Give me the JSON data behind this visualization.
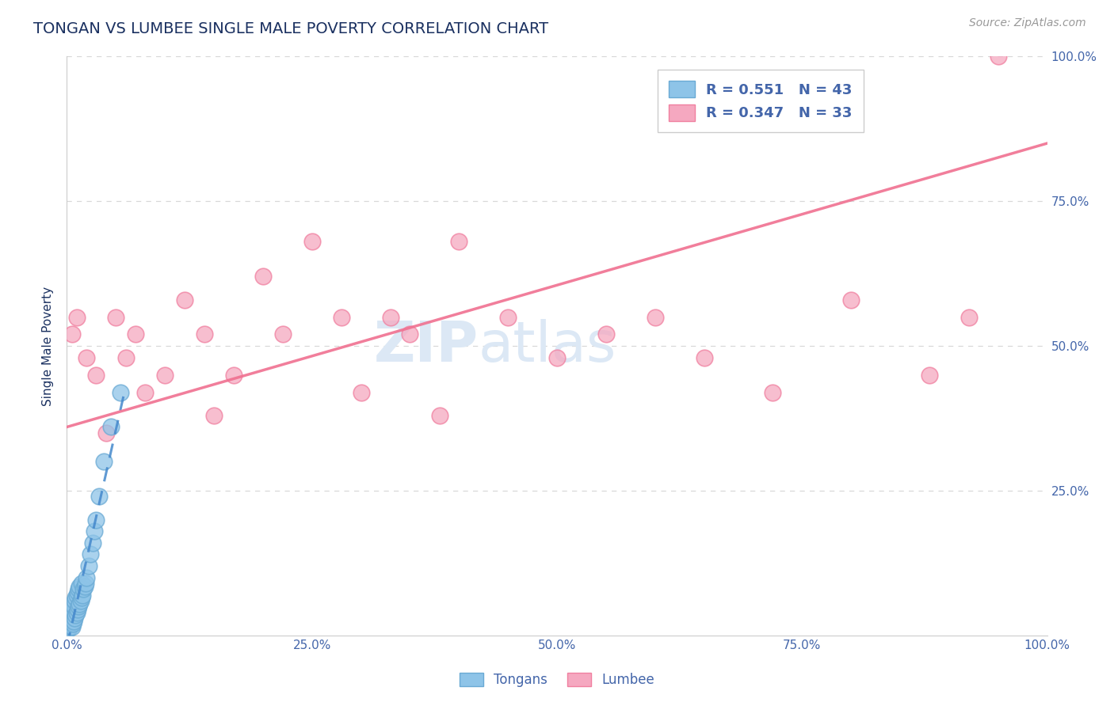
{
  "title": "TONGAN VS LUMBEE SINGLE MALE POVERTY CORRELATION CHART",
  "source_text": "Source: ZipAtlas.com",
  "ylabel": "Single Male Poverty",
  "xlim": [
    0,
    1.0
  ],
  "ylim": [
    0,
    1.0
  ],
  "xticks": [
    0.0,
    0.25,
    0.5,
    0.75,
    1.0
  ],
  "xtick_labels": [
    "0.0%",
    "25.0%",
    "50.0%",
    "75.0%",
    "100.0%"
  ],
  "yticks": [
    0.0,
    0.25,
    0.5,
    0.75,
    1.0
  ],
  "ytick_labels_left": [
    "",
    "",
    "",
    "",
    ""
  ],
  "ytick_labels_right": [
    "",
    "25.0%",
    "50.0%",
    "75.0%",
    "100.0%"
  ],
  "tongans_color": "#8ec4e8",
  "lumbee_color": "#f5a8c0",
  "tongans_edge_color": "#6aaad4",
  "lumbee_edge_color": "#f080a0",
  "tongans_line_color": "#4488cc",
  "lumbee_line_color": "#f07090",
  "tongans_R": 0.551,
  "tongans_N": 43,
  "lumbee_R": 0.347,
  "lumbee_N": 33,
  "tongans_x": [
    0.001,
    0.002,
    0.002,
    0.003,
    0.003,
    0.004,
    0.004,
    0.005,
    0.005,
    0.005,
    0.006,
    0.006,
    0.007,
    0.007,
    0.008,
    0.008,
    0.009,
    0.009,
    0.01,
    0.01,
    0.011,
    0.011,
    0.012,
    0.012,
    0.013,
    0.013,
    0.014,
    0.015,
    0.015,
    0.016,
    0.017,
    0.018,
    0.019,
    0.02,
    0.022,
    0.024,
    0.026,
    0.028,
    0.03,
    0.033,
    0.038,
    0.045,
    0.055
  ],
  "tongans_y": [
    0.01,
    0.02,
    0.03,
    0.015,
    0.025,
    0.02,
    0.04,
    0.015,
    0.025,
    0.035,
    0.02,
    0.04,
    0.025,
    0.05,
    0.03,
    0.06,
    0.035,
    0.065,
    0.04,
    0.07,
    0.045,
    0.075,
    0.05,
    0.08,
    0.055,
    0.085,
    0.06,
    0.065,
    0.09,
    0.07,
    0.08,
    0.085,
    0.09,
    0.1,
    0.12,
    0.14,
    0.16,
    0.18,
    0.2,
    0.24,
    0.3,
    0.36,
    0.42
  ],
  "tongans_line_x": [
    0.0,
    0.055
  ],
  "lumbee_x": [
    0.005,
    0.01,
    0.02,
    0.03,
    0.04,
    0.05,
    0.06,
    0.07,
    0.08,
    0.1,
    0.12,
    0.14,
    0.15,
    0.17,
    0.2,
    0.22,
    0.25,
    0.28,
    0.3,
    0.33,
    0.35,
    0.38,
    0.4,
    0.45,
    0.5,
    0.55,
    0.6,
    0.65,
    0.72,
    0.8,
    0.88,
    0.92,
    0.95
  ],
  "lumbee_y": [
    0.52,
    0.55,
    0.48,
    0.45,
    0.35,
    0.55,
    0.48,
    0.52,
    0.42,
    0.45,
    0.58,
    0.52,
    0.38,
    0.45,
    0.62,
    0.52,
    0.68,
    0.55,
    0.42,
    0.55,
    0.52,
    0.38,
    0.68,
    0.55,
    0.48,
    0.52,
    0.55,
    0.48,
    0.42,
    0.58,
    0.45,
    0.55,
    1.0
  ],
  "lumbee_line_x": [
    0.0,
    1.0
  ],
  "lumbee_line_y_start": 0.36,
  "lumbee_line_y_end": 0.85,
  "background_color": "#ffffff",
  "grid_color": "#d8d8d8",
  "title_color": "#1a3060",
  "axis_tick_color": "#4466aa",
  "source_color": "#999999",
  "watermark_color": "#dce8f5",
  "watermark_zip": "ZIP",
  "watermark_atlas": "atlas"
}
